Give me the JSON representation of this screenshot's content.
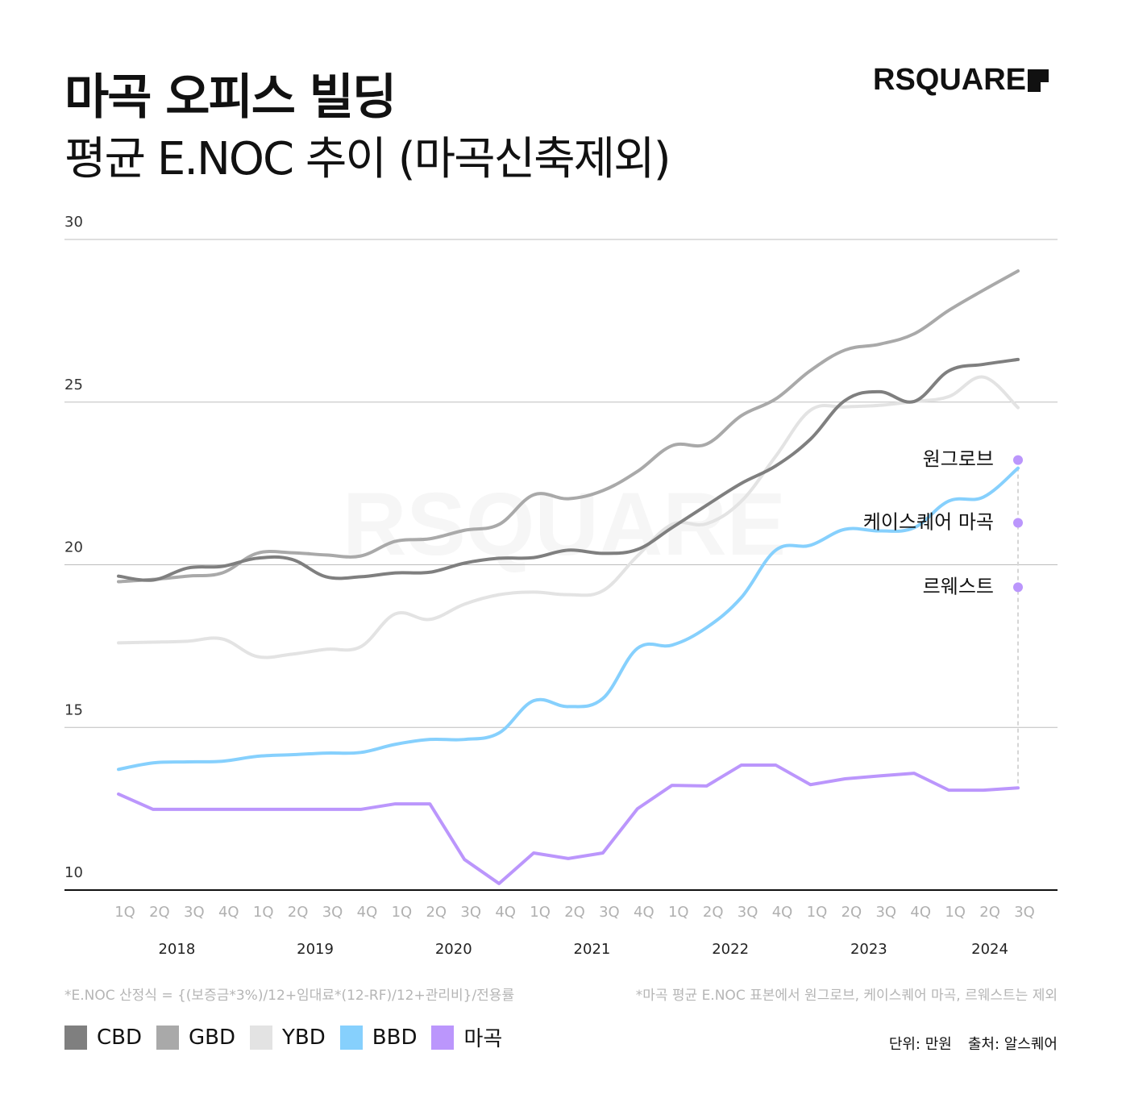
{
  "header": {
    "title": "마곡 오피스 빌딩",
    "subtitle": "평균 E.NOC 추이 (마곡신축제외)",
    "logo": "RSQUARE"
  },
  "footer": {
    "formula_note": "*E.NOC 산정식 = {(보증금*3%)/12+임대료*(12-RF)/12+관리비}/전용률",
    "exclusion_note": "*마곡 평균 E.NOC 표본에서 원그로브, 케이스퀘어 마곡, 르웨스트는 제외",
    "unit": "단위: 만원",
    "source": "출처: 알스퀘어"
  },
  "chart_data": {
    "type": "line",
    "title": "평균 E.NOC 추이 (마곡신축제외)",
    "ylim": [
      10,
      30
    ],
    "yticks": [
      10,
      15,
      20,
      25,
      30
    ],
    "grid": "horizontal",
    "legend_placement": "bottom-left",
    "x_quarters": [
      "1Q",
      "2Q",
      "3Q",
      "4Q",
      "1Q",
      "2Q",
      "3Q",
      "4Q",
      "1Q",
      "2Q",
      "3Q",
      "4Q",
      "1Q",
      "2Q",
      "3Q",
      "4Q",
      "1Q",
      "2Q",
      "3Q",
      "4Q",
      "1Q",
      "2Q",
      "3Q",
      "4Q",
      "1Q",
      "2Q",
      "3Q"
    ],
    "x_years": [
      {
        "label": "2018",
        "start": 0,
        "end": 3
      },
      {
        "label": "2019",
        "start": 4,
        "end": 7
      },
      {
        "label": "2020",
        "start": 8,
        "end": 11
      },
      {
        "label": "2021",
        "start": 12,
        "end": 15
      },
      {
        "label": "2022",
        "start": 16,
        "end": 19
      },
      {
        "label": "2023",
        "start": 20,
        "end": 23
      },
      {
        "label": "2024",
        "start": 24,
        "end": 26
      }
    ],
    "series": [
      {
        "name": "CBD",
        "color": "#7f7f7f",
        "smooth": true,
        "values": [
          19.65,
          19.53,
          19.9,
          19.95,
          20.2,
          20.17,
          19.63,
          19.63,
          19.75,
          19.77,
          20.05,
          20.2,
          20.22,
          20.45,
          20.35,
          20.47,
          21.14,
          21.83,
          22.5,
          23.04,
          23.86,
          25.05,
          25.32,
          25.02,
          25.96,
          26.16,
          26.31
        ]
      },
      {
        "name": "GBD",
        "color": "#a9a9a9",
        "smooth": true,
        "values": [
          19.48,
          19.55,
          19.65,
          19.75,
          20.35,
          20.37,
          20.3,
          20.27,
          20.72,
          20.8,
          21.06,
          21.24,
          22.15,
          22.03,
          22.28,
          22.87,
          23.66,
          23.71,
          24.58,
          25.1,
          25.97,
          26.6,
          26.78,
          27.1,
          27.82,
          28.44,
          29.03
        ]
      },
      {
        "name": "YBD",
        "color": "#e3e3e3",
        "smooth": true,
        "values": [
          17.6,
          17.62,
          17.65,
          17.72,
          17.18,
          17.25,
          17.4,
          17.48,
          18.49,
          18.32,
          18.79,
          19.08,
          19.16,
          19.08,
          19.2,
          20.27,
          21.24,
          21.26,
          21.95,
          23.34,
          24.75,
          24.85,
          24.9,
          25.02,
          25.17,
          25.77,
          24.83
        ]
      },
      {
        "name": "BBD",
        "color": "#86d0fd",
        "smooth": true,
        "values": [
          13.71,
          13.91,
          13.94,
          13.96,
          14.11,
          14.16,
          14.21,
          14.23,
          14.48,
          14.63,
          14.63,
          14.83,
          15.82,
          15.64,
          15.89,
          17.43,
          17.53,
          18.07,
          18.99,
          20.45,
          20.6,
          21.09,
          21.04,
          21.14,
          21.96,
          22.08,
          22.97
        ]
      },
      {
        "name": "마곡",
        "color": "#bb96fc",
        "smooth": false,
        "values": [
          12.95,
          12.48,
          12.48,
          12.48,
          12.48,
          12.48,
          12.48,
          12.48,
          12.65,
          12.65,
          10.94,
          10.2,
          11.14,
          10.97,
          11.14,
          12.5,
          13.22,
          13.2,
          13.84,
          13.84,
          13.24,
          13.42,
          13.51,
          13.59,
          13.07,
          13.07,
          13.14
        ]
      }
    ],
    "annotations": [
      {
        "label": "원그로브",
        "x_index": 26,
        "y": 23.22,
        "color": "#bb96fc"
      },
      {
        "label": "케이스퀘어 마곡",
        "x_index": 26,
        "y": 21.29,
        "color": "#bb96fc"
      },
      {
        "label": "르웨스트",
        "x_index": 26,
        "y": 19.31,
        "color": "#bb96fc"
      }
    ]
  }
}
